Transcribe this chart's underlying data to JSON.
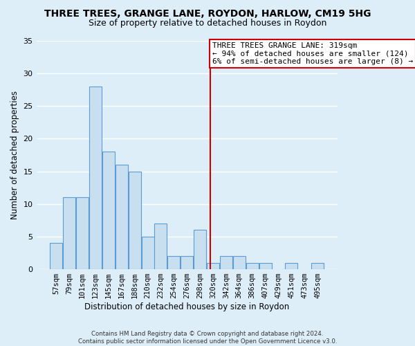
{
  "title": "THREE TREES, GRANGE LANE, ROYDON, HARLOW, CM19 5HG",
  "subtitle": "Size of property relative to detached houses in Roydon",
  "xlabel": "Distribution of detached houses by size in Roydon",
  "ylabel": "Number of detached properties",
  "categories": [
    "57sqm",
    "79sqm",
    "101sqm",
    "123sqm",
    "145sqm",
    "167sqm",
    "188sqm",
    "210sqm",
    "232sqm",
    "254sqm",
    "276sqm",
    "298sqm",
    "320sqm",
    "342sqm",
    "364sqm",
    "386sqm",
    "407sqm",
    "429sqm",
    "451sqm",
    "473sqm",
    "495sqm"
  ],
  "values": [
    4,
    11,
    11,
    28,
    18,
    16,
    15,
    5,
    7,
    2,
    2,
    6,
    1,
    2,
    2,
    1,
    1,
    0,
    1,
    0,
    1
  ],
  "bar_color": "#c8dff0",
  "bar_edge_color": "#5b9bd5",
  "background_color": "#ddeef8",
  "grid_color": "#ffffff",
  "vline_x_index": 11.8,
  "vline_color": "#cc0000",
  "annotation_line1": "THREE TREES GRANGE LANE: 319sqm",
  "annotation_line2": "← 94% of detached houses are smaller (124)",
  "annotation_line3": "6% of semi-detached houses are larger (8) →",
  "annotation_box_color": "#cc0000",
  "annotation_bg": "#ffffff",
  "ylim": [
    0,
    35
  ],
  "yticks": [
    0,
    5,
    10,
    15,
    20,
    25,
    30,
    35
  ],
  "footnote": "Contains HM Land Registry data © Crown copyright and database right 2024.\nContains public sector information licensed under the Open Government Licence v3.0.",
  "title_fontsize": 10,
  "subtitle_fontsize": 9,
  "axis_label_fontsize": 8.5,
  "tick_fontsize": 7.5,
  "annot_fontsize": 8,
  "ylabel_fontsize": 8.5
}
